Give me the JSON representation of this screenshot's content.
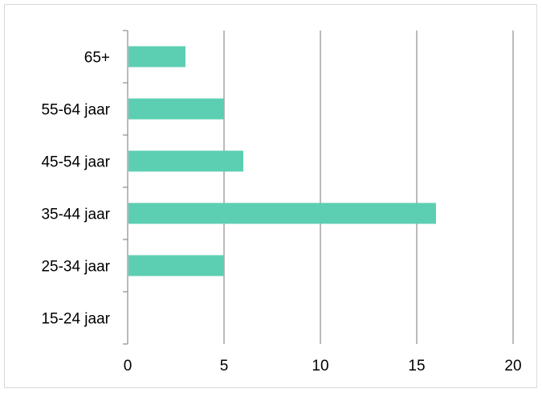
{
  "chart_data": {
    "type": "bar",
    "orientation": "horizontal",
    "categories": [
      "15-24 jaar",
      "25-34 jaar",
      "35-44 jaar",
      "45-54 jaar",
      "55-64 jaar",
      "65+"
    ],
    "values": [
      0,
      5,
      16,
      6,
      5,
      3
    ],
    "xlim": [
      0,
      20
    ],
    "xticks": [
      0,
      5,
      10,
      15,
      20
    ],
    "grid": "vertical",
    "legend": "none",
    "colors": {
      "bar": "#5ccfb2",
      "grid": "#8c8c8c",
      "axis": "#8c8c8c",
      "frame": "#d9d9d9"
    }
  }
}
